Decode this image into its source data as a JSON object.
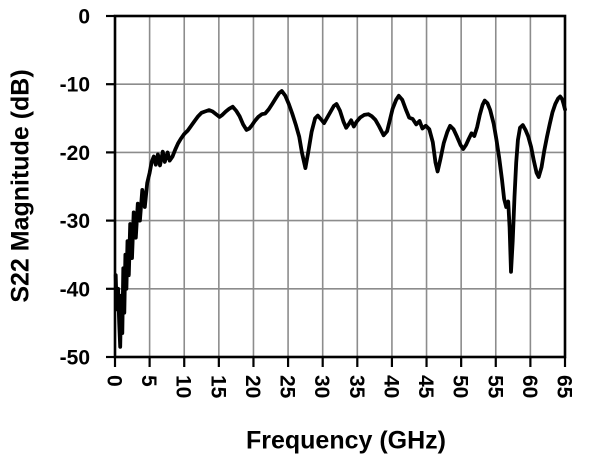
{
  "figure": {
    "background": "#ffffff",
    "border_color": "#000000",
    "grid_color": "#8c8c8c",
    "curve_color": "#000000",
    "text_color": "#000000"
  },
  "chart_data": {
    "type": "line",
    "title": "",
    "xlabel": "Frequency (GHz)",
    "ylabel": "S22 Magnitude (dB)",
    "xlim": [
      0,
      65
    ],
    "ylim": [
      -50,
      0
    ],
    "x_ticks": [
      0,
      5,
      10,
      15,
      20,
      25,
      30,
      35,
      40,
      45,
      50,
      55,
      60,
      65
    ],
    "y_ticks": [
      0,
      -10,
      -20,
      -30,
      -40,
      -50
    ],
    "grid": true,
    "legend": "none",
    "x_tick_rotation": 90,
    "series": [
      {
        "name": "S22",
        "points": [
          [
            0.1,
            -38
          ],
          [
            0.25,
            -43
          ],
          [
            0.45,
            -40
          ],
          [
            0.6,
            -45
          ],
          [
            0.75,
            -48.5
          ],
          [
            0.9,
            -41
          ],
          [
            1.05,
            -46.5
          ],
          [
            1.2,
            -37
          ],
          [
            1.35,
            -43.5
          ],
          [
            1.5,
            -35
          ],
          [
            1.65,
            -40
          ],
          [
            1.8,
            -33
          ],
          [
            2.0,
            -38
          ],
          [
            2.2,
            -30.5
          ],
          [
            2.45,
            -35.5
          ],
          [
            2.7,
            -28.8
          ],
          [
            3.0,
            -32.5
          ],
          [
            3.3,
            -27.5
          ],
          [
            3.6,
            -30
          ],
          [
            3.95,
            -25.5
          ],
          [
            4.3,
            -28
          ],
          [
            4.65,
            -24.5
          ],
          [
            5.0,
            -23
          ],
          [
            5.3,
            -21.4
          ],
          [
            5.6,
            -20.6
          ],
          [
            5.9,
            -21.8
          ],
          [
            6.2,
            -20.3
          ],
          [
            6.5,
            -21.9
          ],
          [
            6.9,
            -19.9
          ],
          [
            7.2,
            -21.4
          ],
          [
            7.6,
            -20.0
          ],
          [
            7.9,
            -21.2
          ],
          [
            8.3,
            -20.6
          ],
          [
            8.7,
            -19.6
          ],
          [
            9.1,
            -18.7
          ],
          [
            9.5,
            -18.0
          ],
          [
            10.0,
            -17.3
          ],
          [
            10.5,
            -16.8
          ],
          [
            11.0,
            -16.1
          ],
          [
            11.5,
            -15.4
          ],
          [
            12.0,
            -14.7
          ],
          [
            12.5,
            -14.2
          ],
          [
            13.0,
            -14.0
          ],
          [
            13.6,
            -13.8
          ],
          [
            14.1,
            -14.0
          ],
          [
            14.6,
            -14.4
          ],
          [
            15.1,
            -14.8
          ],
          [
            15.5,
            -14.5
          ],
          [
            16.0,
            -14.0
          ],
          [
            16.5,
            -13.6
          ],
          [
            17.0,
            -13.3
          ],
          [
            17.5,
            -13.9
          ],
          [
            18.0,
            -14.7
          ],
          [
            18.5,
            -15.9
          ],
          [
            19.0,
            -16.7
          ],
          [
            19.4,
            -16.5
          ],
          [
            19.8,
            -16.0
          ],
          [
            20.2,
            -15.4
          ],
          [
            20.7,
            -14.8
          ],
          [
            21.2,
            -14.4
          ],
          [
            21.7,
            -14.3
          ],
          [
            22.2,
            -13.7
          ],
          [
            22.7,
            -12.9
          ],
          [
            23.2,
            -12.1
          ],
          [
            23.7,
            -11.3
          ],
          [
            24.1,
            -11.0
          ],
          [
            24.6,
            -11.7
          ],
          [
            25.1,
            -12.9
          ],
          [
            25.6,
            -14.3
          ],
          [
            26.1,
            -15.9
          ],
          [
            26.6,
            -17.7
          ],
          [
            27.0,
            -20.0
          ],
          [
            27.5,
            -22.3
          ],
          [
            27.9,
            -20.0
          ],
          [
            28.4,
            -17.0
          ],
          [
            28.9,
            -15.0
          ],
          [
            29.3,
            -14.6
          ],
          [
            29.8,
            -15.2
          ],
          [
            30.2,
            -15.7
          ],
          [
            30.6,
            -15.0
          ],
          [
            31.1,
            -14.1
          ],
          [
            31.6,
            -13.2
          ],
          [
            32.0,
            -12.9
          ],
          [
            32.5,
            -13.9
          ],
          [
            33.0,
            -15.5
          ],
          [
            33.4,
            -16.4
          ],
          [
            33.8,
            -15.8
          ],
          [
            34.1,
            -15.3
          ],
          [
            34.5,
            -16.2
          ],
          [
            34.9,
            -15.5
          ],
          [
            35.4,
            -14.9
          ],
          [
            36.0,
            -14.5
          ],
          [
            36.6,
            -14.4
          ],
          [
            37.1,
            -14.7
          ],
          [
            37.6,
            -15.2
          ],
          [
            38.1,
            -16.1
          ],
          [
            38.8,
            -17.5
          ],
          [
            39.3,
            -16.9
          ],
          [
            39.7,
            -15.3
          ],
          [
            40.1,
            -13.6
          ],
          [
            40.6,
            -12.3
          ],
          [
            41.0,
            -11.7
          ],
          [
            41.5,
            -12.3
          ],
          [
            42.0,
            -13.7
          ],
          [
            42.5,
            -14.9
          ],
          [
            43.0,
            -15.1
          ],
          [
            43.5,
            -15.9
          ],
          [
            44.0,
            -15.4
          ],
          [
            44.4,
            -16.5
          ],
          [
            44.9,
            -16.1
          ],
          [
            45.4,
            -16.6
          ],
          [
            45.9,
            -18.5
          ],
          [
            46.3,
            -21.5
          ],
          [
            46.6,
            -22.8
          ],
          [
            47.0,
            -21.0
          ],
          [
            47.5,
            -18.6
          ],
          [
            48.0,
            -17.0
          ],
          [
            48.4,
            -16.1
          ],
          [
            48.9,
            -16.6
          ],
          [
            49.4,
            -17.7
          ],
          [
            49.9,
            -18.9
          ],
          [
            50.3,
            -19.5
          ],
          [
            50.7,
            -18.9
          ],
          [
            51.1,
            -18.0
          ],
          [
            51.5,
            -17.2
          ],
          [
            51.9,
            -17.6
          ],
          [
            52.3,
            -16.3
          ],
          [
            52.7,
            -14.5
          ],
          [
            53.1,
            -13.0
          ],
          [
            53.4,
            -12.4
          ],
          [
            53.8,
            -12.8
          ],
          [
            54.2,
            -13.8
          ],
          [
            54.7,
            -15.8
          ],
          [
            55.1,
            -18.2
          ],
          [
            55.5,
            -20.8
          ],
          [
            55.9,
            -24.0
          ],
          [
            56.2,
            -26.8
          ],
          [
            56.5,
            -28.0
          ],
          [
            56.8,
            -27.2
          ],
          [
            57.0,
            -31.0
          ],
          [
            57.2,
            -37.5
          ],
          [
            57.45,
            -33.0
          ],
          [
            57.7,
            -26.5
          ],
          [
            57.95,
            -21.5
          ],
          [
            58.2,
            -18.2
          ],
          [
            58.5,
            -16.4
          ],
          [
            58.9,
            -16.0
          ],
          [
            59.3,
            -16.7
          ],
          [
            59.7,
            -17.7
          ],
          [
            60.1,
            -19.2
          ],
          [
            60.5,
            -21.2
          ],
          [
            60.9,
            -23.0
          ],
          [
            61.2,
            -23.6
          ],
          [
            61.6,
            -22.2
          ],
          [
            62.0,
            -19.8
          ],
          [
            62.4,
            -17.7
          ],
          [
            62.8,
            -15.8
          ],
          [
            63.2,
            -14.1
          ],
          [
            63.6,
            -12.9
          ],
          [
            64.0,
            -12.1
          ],
          [
            64.3,
            -11.8
          ],
          [
            64.6,
            -12.2
          ],
          [
            64.8,
            -12.9
          ],
          [
            65.0,
            -13.7
          ]
        ]
      }
    ]
  }
}
